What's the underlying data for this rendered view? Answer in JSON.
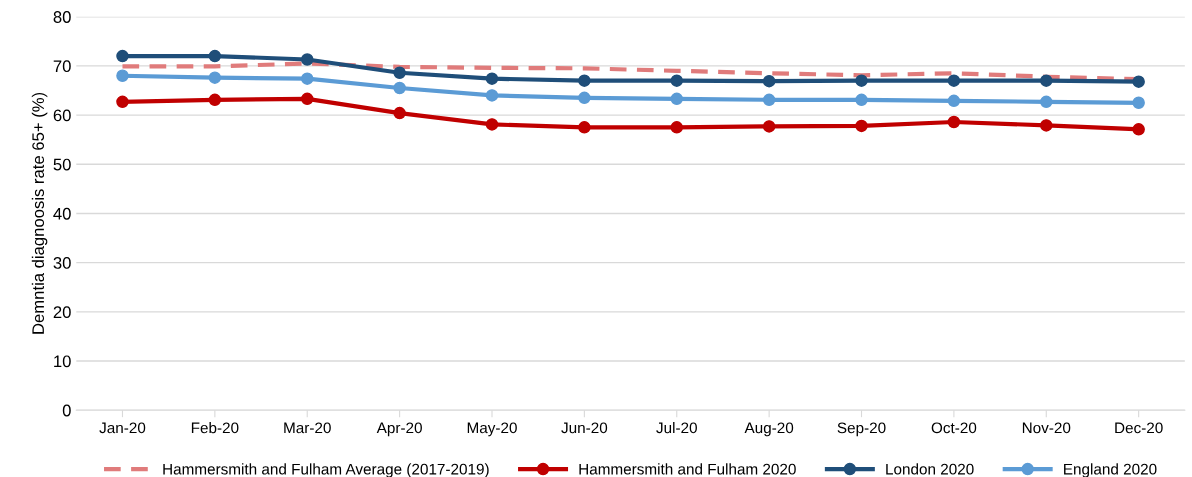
{
  "chart_data": {
    "type": "line",
    "ylabel": "Demntia diagnoosis rate 65+ (%)",
    "categories": [
      "Jan-20",
      "Feb-20",
      "Mar-20",
      "Apr-20",
      "May-20",
      "Jun-20",
      "Jul-20",
      "Aug-20",
      "Sep-20",
      "Oct-20",
      "Nov-20",
      "Dec-20"
    ],
    "series": [
      {
        "name": "Hammersmith and Fulham Average (2017-2019)",
        "color": "#e07b7b",
        "line_style": "dashed",
        "marker": "none",
        "values": [
          69.9,
          69.9,
          70.5,
          69.8,
          69.6,
          69.5,
          69.0,
          68.5,
          68.1,
          68.5,
          67.8,
          67.3
        ]
      },
      {
        "name": "Hammersmith and Fulham 2020",
        "color": "#c00000",
        "line_style": "solid",
        "marker": "circle",
        "values": [
          62.7,
          63.1,
          63.3,
          60.4,
          58.1,
          57.5,
          57.5,
          57.7,
          57.8,
          58.6,
          57.9,
          57.1
        ]
      },
      {
        "name": "London 2020",
        "color": "#1f4e79",
        "line_style": "solid",
        "marker": "circle",
        "values": [
          72.0,
          72.0,
          71.3,
          68.6,
          67.4,
          67.0,
          67.0,
          66.9,
          67.0,
          67.0,
          67.0,
          66.8
        ]
      },
      {
        "name": "England 2020",
        "color": "#5b9bd5",
        "line_style": "solid",
        "marker": "circle",
        "values": [
          68.0,
          67.6,
          67.4,
          65.5,
          64.0,
          63.5,
          63.3,
          63.1,
          63.1,
          62.9,
          62.7,
          62.5
        ]
      }
    ],
    "ylim": [
      0,
      80
    ],
    "yticks": [
      0,
      10,
      20,
      30,
      40,
      50,
      60,
      70,
      80
    ],
    "grid": "y",
    "legend": "bottom"
  }
}
